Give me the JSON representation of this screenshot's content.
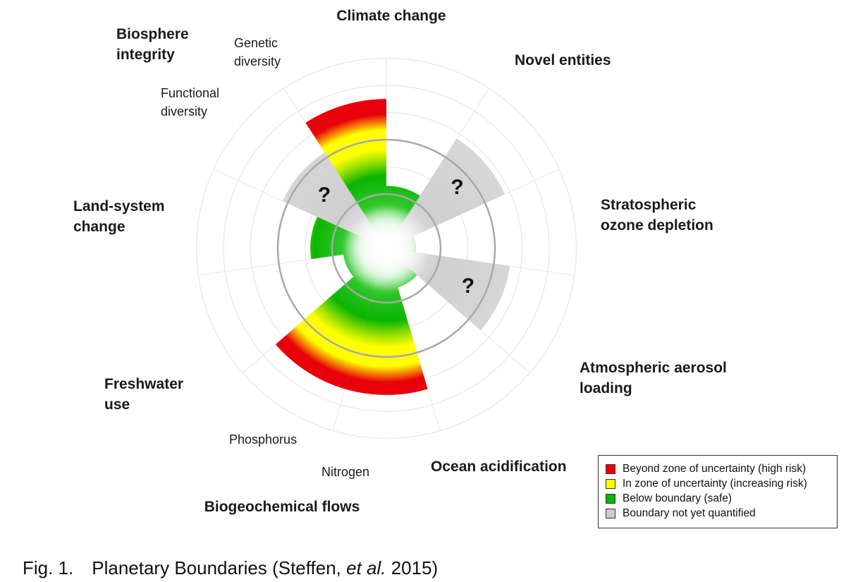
{
  "colors": {
    "beyond": "#e8000b",
    "uncertainty": "#ffff00",
    "safe": "#0ab500",
    "unquantified": "#cccccc",
    "ring": "#a8a8a8",
    "grid": "#e6e6e6"
  },
  "chart_data": {
    "type": "polar-area",
    "boundary_ring": 2,
    "categories": [
      {
        "label": "Climate change",
        "sub": "",
        "state": "uncertainty",
        "value": 2.3
      },
      {
        "label": "Novel entities",
        "sub": "",
        "state": "unquantified",
        "value": 4.8,
        "mark": "?"
      },
      {
        "label": "Stratospheric ozone depletion",
        "sub": "",
        "state": "safe",
        "value": 1.1
      },
      {
        "label": "Atmospheric aerosol loading",
        "sub": "",
        "state": "unquantified",
        "value": 4.6,
        "mark": "?"
      },
      {
        "label": "Ocean acidification",
        "sub": "",
        "state": "safe",
        "value": 1.5
      },
      {
        "label": "Biogeochemical flows",
        "sub": "Nitrogen",
        "state": "beyond",
        "value": 5.4
      },
      {
        "label": "Biogeochemical flows",
        "sub": "Phosphorus",
        "state": "beyond",
        "value": 5.4
      },
      {
        "label": "Freshwater use",
        "sub": "",
        "state": "safe",
        "value": 1.6
      },
      {
        "label": "Land-system change",
        "sub": "",
        "state": "uncertainty",
        "value": 2.8
      },
      {
        "label": "Biosphere integrity",
        "sub": "Functional diversity",
        "state": "unquantified",
        "value": 4.2,
        "mark": "?"
      },
      {
        "label": "Biosphere integrity",
        "sub": "Genetic diversity",
        "state": "beyond",
        "value": 5.5
      }
    ]
  },
  "labels": {
    "climate": "Climate change",
    "novel": "Novel entities",
    "ozone1": "Stratospheric",
    "ozone2": "ozone depletion",
    "aerosol1": "Atmospheric aerosol",
    "aerosol2": "loading",
    "ocean": "Ocean acidification",
    "biogeo": "Biogeochemical flows",
    "nitrogen": "Nitrogen",
    "phosphorus": "Phosphorus",
    "fresh1": "Freshwater",
    "fresh2": "use",
    "land1": "Land-system",
    "land2": "change",
    "bio1": "Biosphere",
    "bio2": "integrity",
    "functional1": "Functional",
    "functional2": "diversity",
    "genetic1": "Genetic",
    "genetic2": "diversity",
    "question": "?"
  },
  "legend": [
    {
      "key": "beyond",
      "label": "Beyond zone of uncertainty (high risk)"
    },
    {
      "key": "uncertainty",
      "label": "In zone of uncertainty (increasing risk)"
    },
    {
      "key": "safe",
      "label": "Below boundary (safe)"
    },
    {
      "key": "unquantified",
      "label": "Boundary not yet quantified"
    }
  ],
  "caption": {
    "number": "Fig. 1.",
    "text_before": "Planetary Boundaries (Steffen, ",
    "italic": "et al.",
    "text_after": " 2015)"
  }
}
